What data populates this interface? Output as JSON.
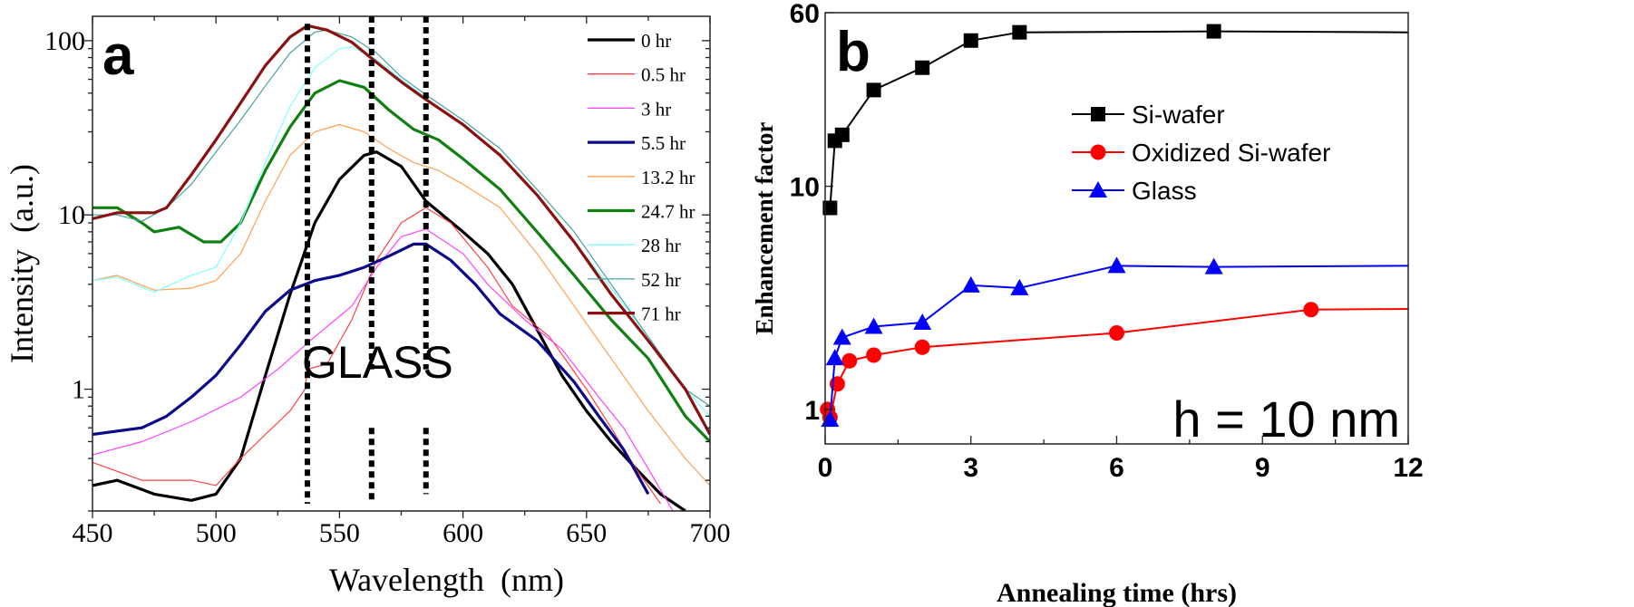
{
  "chart_data": [
    {
      "type": "line",
      "panel_label": "a",
      "xlabel": "Wavelength  (nm)",
      "ylabel": "Intensity  (a.u.)",
      "xscale": "linear",
      "yscale": "log",
      "xlim": [
        450,
        700
      ],
      "ylim": [
        0.2,
        138
      ],
      "xticks": [
        450,
        500,
        550,
        600,
        650,
        700
      ],
      "yticks": [
        1,
        10,
        100
      ],
      "ytick_labels": [
        "1",
        "10",
        "100"
      ],
      "annotation": "GLASS",
      "dotted_lines_nm": [
        537,
        563,
        585
      ],
      "legend_position": "top-right",
      "series": [
        {
          "name": "0 hr",
          "color": "#000000",
          "thick": true,
          "points": [
            [
              450,
              0.28
            ],
            [
              460,
              0.3
            ],
            [
              475,
              0.25
            ],
            [
              490,
              0.23
            ],
            [
              500,
              0.25
            ],
            [
              510,
              0.4
            ],
            [
              520,
              1.2
            ],
            [
              530,
              3.5
            ],
            [
              540,
              9
            ],
            [
              550,
              16
            ],
            [
              560,
              22
            ],
            [
              565,
              23
            ],
            [
              575,
              19
            ],
            [
              585,
              12
            ],
            [
              600,
              8
            ],
            [
              610,
              6
            ],
            [
              620,
              4
            ],
            [
              630,
              2.2
            ],
            [
              640,
              1.2
            ],
            [
              650,
              0.75
            ],
            [
              660,
              0.5
            ],
            [
              670,
              0.35
            ],
            [
              680,
              0.25
            ],
            [
              690,
              0.2
            ]
          ]
        },
        {
          "name": "0.5 hr",
          "color": "#ff4040",
          "thick": false,
          "points": [
            [
              450,
              0.38
            ],
            [
              470,
              0.3
            ],
            [
              490,
              0.3
            ],
            [
              500,
              0.28
            ],
            [
              510,
              0.4
            ],
            [
              520,
              0.55
            ],
            [
              530,
              0.75
            ],
            [
              536,
              1.0
            ],
            [
              537,
              1.3
            ],
            [
              545,
              1.4
            ],
            [
              555,
              2.5
            ],
            [
              565,
              5.5
            ],
            [
              575,
              9
            ],
            [
              585,
              11
            ],
            [
              595,
              9
            ],
            [
              610,
              5
            ],
            [
              620,
              3
            ],
            [
              635,
              2
            ],
            [
              650,
              1.0
            ],
            [
              660,
              0.6
            ],
            [
              670,
              0.35
            ],
            [
              680,
              0.22
            ]
          ]
        },
        {
          "name": "3 hr",
          "color": "#ff40ff",
          "thick": false,
          "points": [
            [
              450,
              0.42
            ],
            [
              470,
              0.5
            ],
            [
              490,
              0.65
            ],
            [
              510,
              0.9
            ],
            [
              525,
              1.3
            ],
            [
              540,
              2
            ],
            [
              555,
              3
            ],
            [
              565,
              5
            ],
            [
              575,
              7.5
            ],
            [
              585,
              8.3
            ],
            [
              600,
              6
            ],
            [
              610,
              4
            ],
            [
              625,
              2.5
            ],
            [
              640,
              1.7
            ],
            [
              655,
              0.9
            ],
            [
              665,
              0.6
            ],
            [
              675,
              0.35
            ],
            [
              685,
              0.2
            ]
          ]
        },
        {
          "name": "5.5 hr",
          "color": "#0a0a8a",
          "thick": true,
          "points": [
            [
              450,
              0.55
            ],
            [
              470,
              0.6
            ],
            [
              480,
              0.7
            ],
            [
              490,
              0.9
            ],
            [
              500,
              1.2
            ],
            [
              510,
              1.8
            ],
            [
              520,
              2.8
            ],
            [
              530,
              3.7
            ],
            [
              540,
              4.2
            ],
            [
              550,
              4.5
            ],
            [
              560,
              5
            ],
            [
              570,
              5.8
            ],
            [
              580,
              6.8
            ],
            [
              585,
              6.8
            ],
            [
              595,
              5.5
            ],
            [
              605,
              4
            ],
            [
              615,
              2.7
            ],
            [
              630,
              1.9
            ],
            [
              645,
              1.1
            ],
            [
              655,
              0.7
            ],
            [
              665,
              0.45
            ],
            [
              675,
              0.25
            ]
          ]
        },
        {
          "name": "13.2 hr",
          "color": "#ffa050",
          "thick": false,
          "points": [
            [
              450,
              4.2
            ],
            [
              460,
              4.5
            ],
            [
              475,
              3.7
            ],
            [
              490,
              3.8
            ],
            [
              500,
              4.2
            ],
            [
              510,
              6
            ],
            [
              520,
              12
            ],
            [
              530,
              22
            ],
            [
              540,
              30
            ],
            [
              550,
              33
            ],
            [
              560,
              30
            ],
            [
              570,
              24
            ],
            [
              580,
              20
            ],
            [
              590,
              18
            ],
            [
              600,
              15
            ],
            [
              615,
              11
            ],
            [
              630,
              6
            ],
            [
              645,
              3
            ],
            [
              660,
              1.5
            ],
            [
              675,
              0.75
            ],
            [
              690,
              0.4
            ],
            [
              700,
              0.28
            ]
          ]
        },
        {
          "name": "24.7 hr",
          "color": "#108010",
          "thick": true,
          "points": [
            [
              450,
              11
            ],
            [
              460,
              11
            ],
            [
              470,
              9
            ],
            [
              475,
              8
            ],
            [
              485,
              8.5
            ],
            [
              495,
              7
            ],
            [
              502,
              7
            ],
            [
              510,
              9
            ],
            [
              520,
              18
            ],
            [
              530,
              32
            ],
            [
              540,
              50
            ],
            [
              550,
              59
            ],
            [
              560,
              54
            ],
            [
              570,
              40
            ],
            [
              580,
              31
            ],
            [
              590,
              27
            ],
            [
              600,
              21
            ],
            [
              615,
              14
            ],
            [
              630,
              8
            ],
            [
              645,
              4.5
            ],
            [
              660,
              2.5
            ],
            [
              675,
              1.5
            ],
            [
              690,
              0.7
            ],
            [
              700,
              0.5
            ]
          ]
        },
        {
          "name": "28 hr",
          "color": "#80ffff",
          "thick": false,
          "points": [
            [
              450,
              4.2
            ],
            [
              460,
              4.4
            ],
            [
              475,
              3.6
            ],
            [
              490,
              4.5
            ],
            [
              500,
              5
            ],
            [
              510,
              9
            ],
            [
              520,
              20
            ],
            [
              530,
              42
            ],
            [
              540,
              70
            ],
            [
              550,
              90
            ],
            [
              555,
              92
            ],
            [
              565,
              78
            ],
            [
              575,
              60
            ],
            [
              585,
              47
            ],
            [
              600,
              33
            ],
            [
              615,
              22
            ],
            [
              630,
              13
            ],
            [
              645,
              7
            ],
            [
              660,
              3.8
            ],
            [
              675,
              2
            ],
            [
              690,
              1
            ],
            [
              700,
              0.7
            ]
          ]
        },
        {
          "name": "52 hr",
          "color": "#4aa0a0",
          "thick": false,
          "points": [
            [
              450,
              10
            ],
            [
              460,
              10
            ],
            [
              470,
              9.2
            ],
            [
              480,
              11
            ],
            [
              490,
              15
            ],
            [
              500,
              23
            ],
            [
              510,
              35
            ],
            [
              520,
              55
            ],
            [
              530,
              85
            ],
            [
              540,
              112
            ],
            [
              545,
              115
            ],
            [
              555,
              105
            ],
            [
              565,
              85
            ],
            [
              575,
              62
            ],
            [
              585,
              49
            ],
            [
              600,
              35
            ],
            [
              615,
              24
            ],
            [
              630,
              14
            ],
            [
              645,
              8
            ],
            [
              660,
              4
            ],
            [
              675,
              2
            ],
            [
              690,
              1
            ],
            [
              700,
              0.8
            ]
          ]
        },
        {
          "name": "71 hr",
          "color": "#8b1010",
          "thick": true,
          "points": [
            [
              450,
              9.5
            ],
            [
              460,
              10.3
            ],
            [
              475,
              10.3
            ],
            [
              480,
              11
            ],
            [
              490,
              17
            ],
            [
              500,
              27
            ],
            [
              510,
              44
            ],
            [
              520,
              72
            ],
            [
              530,
              105
            ],
            [
              537,
              122
            ],
            [
              545,
              115
            ],
            [
              555,
              98
            ],
            [
              565,
              75
            ],
            [
              575,
              58
            ],
            [
              585,
              46
            ],
            [
              600,
              33
            ],
            [
              615,
              22
            ],
            [
              630,
              13
            ],
            [
              645,
              7
            ],
            [
              660,
              3.5
            ],
            [
              675,
              1.9
            ],
            [
              690,
              1.0
            ],
            [
              700,
              0.55
            ]
          ]
        }
      ]
    },
    {
      "type": "line",
      "panel_label": "b",
      "xlabel": "Annealing time (hrs)",
      "ylabel": "Enhancement factor",
      "xscale": "linear",
      "yscale": "log",
      "xlim": [
        0,
        12
      ],
      "ylim": [
        0.7,
        60
      ],
      "xticks": [
        0,
        3,
        6,
        9,
        12
      ],
      "yticks": [
        1,
        10,
        60
      ],
      "ytick_labels": [
        "1",
        "10",
        "60"
      ],
      "annotation": "h = 10 nm",
      "legend_position": "upper-middle",
      "series": [
        {
          "name": "Si-wafer",
          "color": "#000000",
          "marker": "square",
          "x": [
            0.1,
            0.2,
            0.35,
            1,
            2,
            3,
            4,
            8
          ],
          "y": [
            8,
            16,
            17,
            27,
            34,
            45,
            49,
            49.5
          ],
          "line_end": [
            12,
            49
          ]
        },
        {
          "name": "Oxidized Si-wafer",
          "color": "#ff0000",
          "marker": "circle",
          "x": [
            0.05,
            0.1,
            0.25,
            0.5,
            1,
            2,
            6,
            10
          ],
          "y": [
            1,
            0.92,
            1.3,
            1.65,
            1.75,
            1.9,
            2.2,
            2.8
          ],
          "line_end": [
            12,
            2.82
          ]
        },
        {
          "name": "Glass",
          "color": "#0000ff",
          "marker": "triangle",
          "x": [
            0.1,
            0.2,
            0.35,
            1,
            2,
            3,
            4,
            6,
            8
          ],
          "y": [
            0.9,
            1.7,
            2.1,
            2.35,
            2.45,
            3.6,
            3.5,
            4.4,
            4.35
          ],
          "line_end": [
            12,
            4.4
          ]
        }
      ]
    }
  ]
}
